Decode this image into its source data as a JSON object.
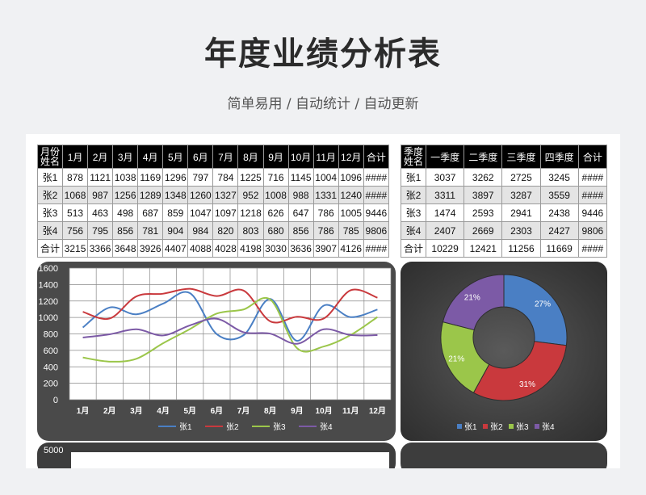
{
  "header": {
    "title": "年度业绩分析表",
    "subtitle": "简单易用 / 自动统计 / 自动更新"
  },
  "monthly_table": {
    "corner_top": "月份",
    "corner_bottom": "姓名",
    "columns": [
      "1月",
      "2月",
      "3月",
      "4月",
      "5月",
      "6月",
      "7月",
      "8月",
      "9月",
      "10月",
      "11月",
      "12月",
      "合计"
    ],
    "rows": [
      {
        "name": "张1",
        "values": [
          "878",
          "1121",
          "1038",
          "1169",
          "1296",
          "797",
          "784",
          "1225",
          "716",
          "1145",
          "1004",
          "1096",
          "####"
        ]
      },
      {
        "name": "张2",
        "values": [
          "1068",
          "987",
          "1256",
          "1289",
          "1348",
          "1260",
          "1327",
          "952",
          "1008",
          "988",
          "1331",
          "1240",
          "####"
        ]
      },
      {
        "name": "张3",
        "values": [
          "513",
          "463",
          "498",
          "687",
          "859",
          "1047",
          "1097",
          "1218",
          "626",
          "647",
          "786",
          "1005",
          "9446"
        ]
      },
      {
        "name": "张4",
        "values": [
          "756",
          "795",
          "856",
          "781",
          "904",
          "984",
          "820",
          "803",
          "680",
          "856",
          "786",
          "785",
          "9806"
        ]
      },
      {
        "name": "合计",
        "values": [
          "3215",
          "3366",
          "3648",
          "3926",
          "4407",
          "4088",
          "4028",
          "4198",
          "3030",
          "3636",
          "3907",
          "4126",
          "####"
        ]
      }
    ]
  },
  "quarter_table": {
    "corner_top": "季度",
    "corner_bottom": "姓名",
    "columns": [
      "一季度",
      "二季度",
      "三季度",
      "四季度",
      "合计"
    ],
    "rows": [
      {
        "name": "张1",
        "values": [
          "3037",
          "3262",
          "2725",
          "3245",
          "####"
        ]
      },
      {
        "name": "张2",
        "values": [
          "3311",
          "3897",
          "3287",
          "3559",
          "####"
        ]
      },
      {
        "name": "张3",
        "values": [
          "1474",
          "2593",
          "2941",
          "2438",
          "9446"
        ]
      },
      {
        "name": "张4",
        "values": [
          "2407",
          "2669",
          "2303",
          "2427",
          "9806"
        ]
      },
      {
        "name": "合计",
        "values": [
          "10229",
          "12421",
          "11256",
          "11669",
          "####"
        ]
      }
    ]
  },
  "colors": {
    "张1": "#4a7fc4",
    "张2": "#c9393d",
    "张3": "#9bc64a",
    "张4": "#7c5aa6"
  },
  "chart_data": [
    {
      "type": "line",
      "categories": [
        "1月",
        "2月",
        "3月",
        "4月",
        "5月",
        "6月",
        "7月",
        "8月",
        "9月",
        "10月",
        "11月",
        "12月"
      ],
      "series": [
        {
          "name": "张1",
          "values": [
            878,
            1121,
            1038,
            1169,
            1296,
            797,
            784,
            1225,
            716,
            1145,
            1004,
            1096
          ]
        },
        {
          "name": "张2",
          "values": [
            1068,
            987,
            1256,
            1289,
            1348,
            1260,
            1327,
            952,
            1008,
            988,
            1331,
            1240
          ]
        },
        {
          "name": "张3",
          "values": [
            513,
            463,
            498,
            687,
            859,
            1047,
            1097,
            1218,
            626,
            647,
            786,
            1005
          ]
        },
        {
          "name": "张4",
          "values": [
            756,
            795,
            856,
            781,
            904,
            984,
            820,
            803,
            680,
            856,
            786,
            785
          ]
        }
      ],
      "ylim": [
        0,
        1600
      ],
      "yticks": [
        "0",
        "200",
        "400",
        "600",
        "800",
        "1000",
        "1200",
        "1400",
        "1600"
      ],
      "grid": true,
      "legend": "bottom"
    },
    {
      "type": "pie",
      "labels": [
        "张1",
        "张2",
        "张3",
        "张4"
      ],
      "values": [
        27,
        31,
        21,
        21
      ],
      "data_labels": [
        "27%",
        "31%",
        "21%",
        "21%"
      ],
      "legend": "bottom"
    },
    {
      "type": "bar",
      "yticks": [
        "5000"
      ],
      "note": ""
    }
  ]
}
